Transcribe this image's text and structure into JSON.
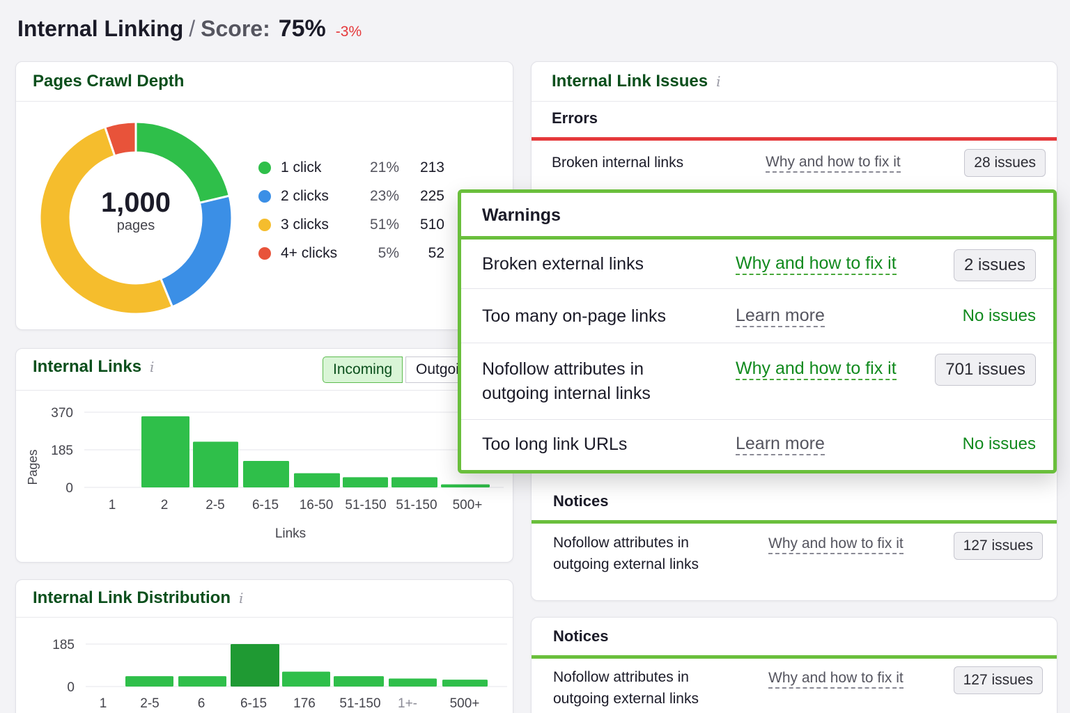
{
  "header": {
    "title": "Internal Linking",
    "separator": "/",
    "score_label": "Score:",
    "score_value": "75%",
    "score_delta": "-3%"
  },
  "crawl_depth": {
    "title": "Pages Crawl Depth",
    "total": "1,000",
    "total_unit": "pages",
    "legend": [
      {
        "label": "1 click",
        "pct": "21%",
        "count": "213",
        "color": "#2fbf4a"
      },
      {
        "label": "2 clicks",
        "pct": "23%",
        "count": "225",
        "color": "#3b8fe6"
      },
      {
        "label": "3 clicks",
        "pct": "51%",
        "count": "510",
        "color": "#f5bd2d"
      },
      {
        "label": "4+ clicks",
        "pct": "5%",
        "count": "52",
        "color": "#e8533a"
      }
    ]
  },
  "internal_links": {
    "title": "Internal Links",
    "info_icon": "i",
    "toggle_incoming": "Incoming",
    "toggle_outgoing": "Outgoing"
  },
  "link_distribution": {
    "title": "Internal Link Distribution",
    "info_icon": "i"
  },
  "issues": {
    "title": "Internal Link Issues",
    "info_icon": "i",
    "errors_label": "Errors",
    "errors": [
      {
        "name": "Broken internal links",
        "link": "Why and how to fix it",
        "badge": "28 issues"
      }
    ],
    "notices_label": "Notices",
    "notices": [
      {
        "name_line1": "Nofollow attributes in",
        "name_line2": "outgoing external links",
        "link": "Why and how to fix it",
        "badge": "127 issues"
      }
    ]
  },
  "notices_card": {
    "label": "Notices",
    "name_line1": "Nofollow attributes in",
    "name_line2": "outgoing external links",
    "link": "Why and how to fix it",
    "badge": "127 issues"
  },
  "warnings": {
    "title": "Warnings",
    "rows": [
      {
        "name": "Broken external links",
        "link": "Why and how to fix it",
        "badge": "2 issues"
      },
      {
        "name": "Too many on-page links",
        "link": "Learn more",
        "status": "No issues"
      },
      {
        "name_line1": "Nofollow attributes in",
        "name_line2": "outgoing internal links",
        "link": "Why and how to fix it",
        "badge": "701 issues"
      },
      {
        "name": "Too long link URLs",
        "link": "Learn more",
        "status": "No issues"
      }
    ]
  },
  "colors": {
    "bar_green": "#2fbf4a",
    "bar_dark_green": "#1f9a33",
    "error_red": "#e5383b",
    "warning_green": "#6abf3c"
  },
  "chart_data": [
    {
      "type": "bar",
      "title": "Internal Links",
      "categories": [
        "1",
        "2",
        "2-5",
        "6-15",
        "16-50",
        "51-150",
        "51-150",
        "500+"
      ],
      "values": [
        0,
        350,
        225,
        130,
        70,
        50,
        50,
        15
      ],
      "xlabel": "Links",
      "ylabel": "Pages",
      "yticks": [
        "0",
        "185",
        "370"
      ],
      "ylim": [
        0,
        370
      ]
    },
    {
      "type": "bar",
      "title": "Internal Link Distribution",
      "categories": [
        "1",
        "2-5",
        "6",
        "6-15",
        "176",
        "51-150",
        "1+-",
        "500+"
      ],
      "values": [
        0,
        45,
        45,
        185,
        65,
        45,
        35,
        30
      ],
      "yticks": [
        "0",
        "185"
      ],
      "ylim": [
        0,
        185
      ]
    }
  ]
}
